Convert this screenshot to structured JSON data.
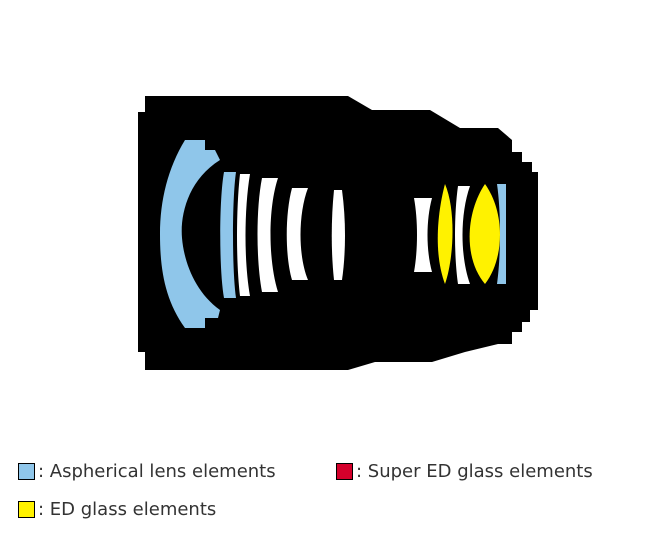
{
  "colors": {
    "background": "#ffffff",
    "barrel": "#000000",
    "aspherical": "#8fc6ea",
    "super_ed": "#d4002b",
    "ed": "#fff200",
    "standard_glass": "#ffffff",
    "legend_text": "#333333"
  },
  "legend": [
    {
      "key": "aspherical",
      "label": ": Aspherical lens elements"
    },
    {
      "key": "super_ed",
      "label": ": Super ED glass elements"
    },
    {
      "key": "ed",
      "label": ": ED glass elements"
    }
  ]
}
